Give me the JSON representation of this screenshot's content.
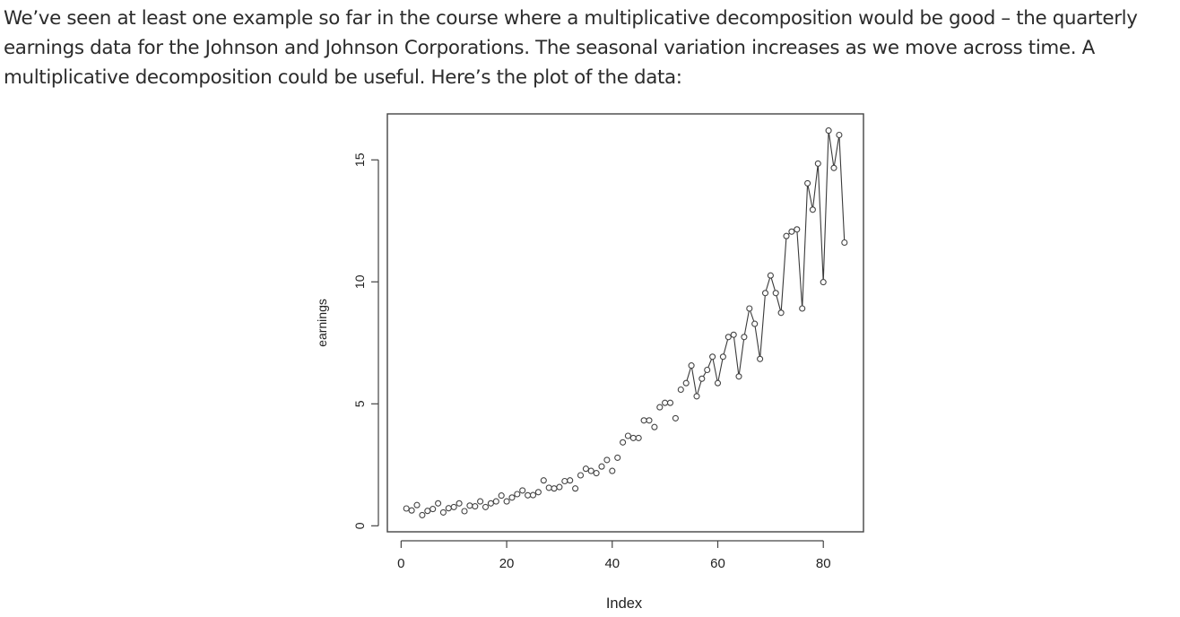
{
  "article": {
    "paragraph": "We’ve seen at least one example so far in the course where a multiplicative decomposition would be good – the quarterly earnings data for the Johnson and Johnson Corporations. The seasonal variation increases as we move across time. A multiplicative decomposition could be useful. Here’s the plot of the data:"
  },
  "chart_data": {
    "type": "line",
    "title": "",
    "xlabel": "Index",
    "ylabel": "earnings",
    "xlim": [
      1,
      84
    ],
    "ylim": [
      0.44,
      16.2
    ],
    "xticks": [
      0,
      20,
      40,
      60,
      80
    ],
    "yticks": [
      0,
      5,
      10,
      15
    ],
    "grid": false,
    "legend": "none",
    "markers": "open circles",
    "line_drawn_from_index": 54,
    "x": [
      1,
      2,
      3,
      4,
      5,
      6,
      7,
      8,
      9,
      10,
      11,
      12,
      13,
      14,
      15,
      16,
      17,
      18,
      19,
      20,
      21,
      22,
      23,
      24,
      25,
      26,
      27,
      28,
      29,
      30,
      31,
      32,
      33,
      34,
      35,
      36,
      37,
      38,
      39,
      40,
      41,
      42,
      43,
      44,
      45,
      46,
      47,
      48,
      49,
      50,
      51,
      52,
      53,
      54,
      55,
      56,
      57,
      58,
      59,
      60,
      61,
      62,
      63,
      64,
      65,
      66,
      67,
      68,
      69,
      70,
      71,
      72,
      73,
      74,
      75,
      76,
      77,
      78,
      79,
      80,
      81,
      82,
      83,
      84
    ],
    "series": [
      {
        "values": [
          0.71,
          0.63,
          0.85,
          0.44,
          0.61,
          0.69,
          0.92,
          0.55,
          0.72,
          0.77,
          0.92,
          0.6,
          0.83,
          0.8,
          1.0,
          0.77,
          0.92,
          1.0,
          1.24,
          1.0,
          1.16,
          1.3,
          1.45,
          1.25,
          1.26,
          1.38,
          1.86,
          1.56,
          1.53,
          1.59,
          1.83,
          1.86,
          1.53,
          2.07,
          2.34,
          2.25,
          2.16,
          2.43,
          2.7,
          2.25,
          2.79,
          3.42,
          3.69,
          3.6,
          3.6,
          4.32,
          4.32,
          4.05,
          4.86,
          5.04,
          5.04,
          4.41,
          5.58,
          5.85,
          6.57,
          5.31,
          6.03,
          6.39,
          6.93,
          5.85,
          6.93,
          7.74,
          7.83,
          6.12,
          7.74,
          8.91,
          8.28,
          6.84,
          9.54,
          10.26,
          9.54,
          8.73,
          11.88,
          12.06,
          12.15,
          8.91,
          14.04,
          12.96,
          14.85,
          9.99,
          16.2,
          14.67,
          16.02,
          11.61
        ]
      }
    ]
  }
}
